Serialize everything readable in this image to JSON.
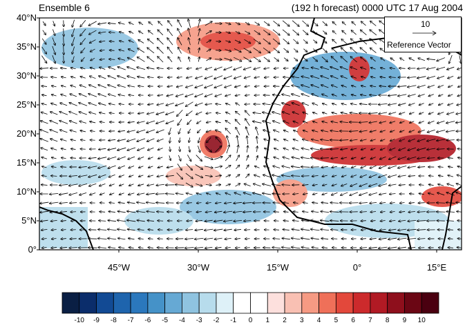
{
  "header": {
    "left_title": "Ensemble 6",
    "right_title": "(192 h forecast) 0000 UTC 17 Aug 2004"
  },
  "map": {
    "lat_labels": [
      "40°N",
      "35°N",
      "30°N",
      "25°N",
      "20°N",
      "15°N",
      "10°N",
      "5°N",
      "0°"
    ],
    "lon_labels": [
      "45°W",
      "30°W",
      "15°W",
      "0°",
      "15°E"
    ],
    "lon_extent": [
      -62,
      18
    ],
    "lat_extent": [
      0,
      40
    ]
  },
  "reference_vector": {
    "magnitude": "10",
    "label": "Reference Vector"
  },
  "colorbar": {
    "labels": [
      "-10",
      "-9",
      "-8",
      "-7",
      "-6",
      "-5",
      "-4",
      "-3",
      "-2",
      "-1",
      "0",
      "1",
      "2",
      "3",
      "4",
      "5",
      "6",
      "7",
      "8",
      "9",
      "10"
    ],
    "colors": [
      "#0a1f44",
      "#0b2d6b",
      "#124a94",
      "#1e64ad",
      "#2b78bd",
      "#4592c8",
      "#66a9d4",
      "#8fc3e0",
      "#b7dcec",
      "#def1f8",
      "#ffffff",
      "#ffffff",
      "#fde0dd",
      "#f9c0b3",
      "#f69a83",
      "#ef7059",
      "#e3483b",
      "#cc2a2c",
      "#b11a24",
      "#8e0f1c",
      "#6b0614",
      "#4a0010"
    ]
  }
}
